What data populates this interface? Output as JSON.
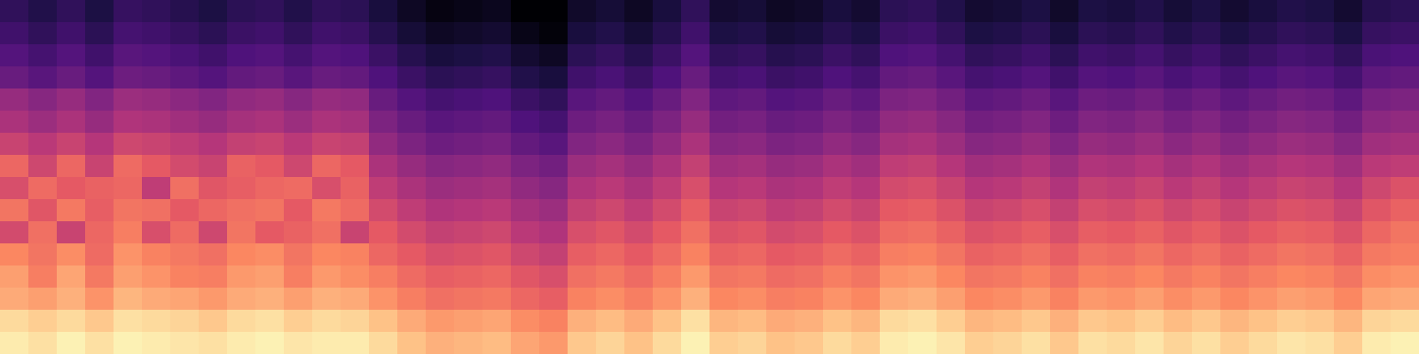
{
  "chart_data": {
    "type": "heatmap",
    "tick_labels": false,
    "zlim": [
      -80,
      0
    ],
    "cells": [
      [
        -66,
        -69,
        -66,
        -70,
        -65,
        -66,
        -68,
        -70,
        -67,
        -66,
        -69,
        -66,
        -67,
        -71,
        -75,
        -78,
        -77,
        -76,
        -80,
        -80,
        -74,
        -72,
        -75,
        -71,
        -66,
        -73,
        -72,
        -75,
        -74,
        -71,
        -73,
        -67,
        -66,
        -69,
        -73,
        -72,
        -70,
        -74,
        -70,
        -71,
        -69,
        -72,
        -70,
        -73,
        -71,
        -69,
        -70,
        -73,
        -68,
        -67
      ],
      [
        -63,
        -66,
        -63,
        -67,
        -62,
        -63,
        -65,
        -67,
        -64,
        -63,
        -66,
        -63,
        -64,
        -68,
        -72,
        -75,
        -74,
        -73,
        -77,
        -79,
        -71,
        -69,
        -72,
        -68,
        -63,
        -70,
        -69,
        -72,
        -71,
        -68,
        -70,
        -64,
        -63,
        -66,
        -70,
        -69,
        -67,
        -71,
        -67,
        -68,
        -66,
        -69,
        -67,
        -70,
        -68,
        -66,
        -67,
        -70,
        -65,
        -64
      ],
      [
        -59,
        -62,
        -59,
        -63,
        -58,
        -59,
        -61,
        -63,
        -60,
        -59,
        -62,
        -59,
        -60,
        -64,
        -68,
        -71,
        -70,
        -69,
        -73,
        -75,
        -67,
        -65,
        -68,
        -64,
        -59,
        -66,
        -65,
        -68,
        -67,
        -64,
        -66,
        -60,
        -59,
        -62,
        -66,
        -65,
        -63,
        -67,
        -63,
        -64,
        -62,
        -65,
        -63,
        -66,
        -64,
        -62,
        -63,
        -66,
        -61,
        -60
      ],
      [
        -55,
        -58,
        -55,
        -59,
        -54,
        -55,
        -57,
        -59,
        -56,
        -55,
        -58,
        -55,
        -56,
        -60,
        -64,
        -67,
        -66,
        -65,
        -69,
        -71,
        -63,
        -61,
        -64,
        -60,
        -55,
        -62,
        -61,
        -64,
        -63,
        -60,
        -62,
        -56,
        -55,
        -58,
        -62,
        -61,
        -59,
        -63,
        -59,
        -60,
        -58,
        -61,
        -59,
        -62,
        -60,
        -58,
        -59,
        -62,
        -57,
        -56
      ],
      [
        -46,
        -49,
        -46,
        -50,
        -45,
        -46,
        -48,
        -50,
        -47,
        -46,
        -49,
        -46,
        -47,
        -55,
        -59,
        -62,
        -61,
        -60,
        -64,
        -66,
        -58,
        -56,
        -59,
        -55,
        -50,
        -57,
        -56,
        -59,
        -58,
        -55,
        -57,
        -51,
        -50,
        -53,
        -57,
        -56,
        -54,
        -58,
        -54,
        -55,
        -53,
        -56,
        -54,
        -57,
        -55,
        -53,
        -54,
        -57,
        -52,
        -51
      ],
      [
        -42,
        -45,
        -42,
        -46,
        -41,
        -42,
        -44,
        -46,
        -43,
        -42,
        -45,
        -42,
        -43,
        -51,
        -55,
        -58,
        -57,
        -56,
        -60,
        -62,
        -54,
        -52,
        -55,
        -51,
        -46,
        -53,
        -52,
        -55,
        -54,
        -51,
        -53,
        -47,
        -46,
        -49,
        -53,
        -52,
        -50,
        -54,
        -50,
        -51,
        -49,
        -52,
        -50,
        -53,
        -51,
        -49,
        -50,
        -53,
        -48,
        -47
      ],
      [
        -36,
        -39,
        -36,
        -40,
        -35,
        -36,
        -38,
        -40,
        -37,
        -36,
        -39,
        -36,
        -37,
        -47,
        -51,
        -54,
        -53,
        -52,
        -56,
        -58,
        -50,
        -48,
        -51,
        -47,
        -42,
        -49,
        -48,
        -51,
        -50,
        -47,
        -49,
        -43,
        -42,
        -45,
        -49,
        -48,
        -46,
        -50,
        -46,
        -47,
        -45,
        -48,
        -46,
        -49,
        -47,
        -45,
        -46,
        -49,
        -44,
        -43
      ],
      [
        -27,
        -35,
        -27,
        -36,
        -26,
        -30,
        -34,
        -36,
        -28,
        -30,
        -35,
        -27,
        -30,
        -42,
        -46,
        -49,
        -48,
        -47,
        -51,
        -53,
        -45,
        -43,
        -46,
        -42,
        -37,
        -44,
        -43,
        -46,
        -45,
        -42,
        -44,
        -38,
        -37,
        -40,
        -44,
        -43,
        -41,
        -45,
        -41,
        -42,
        -40,
        -43,
        -41,
        -44,
        -42,
        -40,
        -41,
        -44,
        -39,
        -38
      ],
      [
        -33,
        -26,
        -30,
        -28,
        -27,
        -38,
        -25,
        -31,
        -29,
        -27,
        -26,
        -33,
        -28,
        -38,
        -42,
        -45,
        -44,
        -43,
        -47,
        -49,
        -41,
        -39,
        -42,
        -38,
        -33,
        -40,
        -39,
        -42,
        -41,
        -38,
        -40,
        -34,
        -33,
        -36,
        -40,
        -39,
        -37,
        -41,
        -37,
        -38,
        -36,
        -39,
        -37,
        -40,
        -38,
        -36,
        -37,
        -40,
        -35,
        -32
      ],
      [
        -24,
        -31,
        -23,
        -29,
        -24,
        -25,
        -30,
        -27,
        -25,
        -24,
        -30,
        -23,
        -26,
        -34,
        -38,
        -41,
        -40,
        -39,
        -43,
        -45,
        -37,
        -35,
        -38,
        -34,
        -29,
        -36,
        -35,
        -38,
        -37,
        -34,
        -36,
        -30,
        -29,
        -32,
        -36,
        -35,
        -33,
        -37,
        -33,
        -34,
        -32,
        -35,
        -33,
        -36,
        -34,
        -32,
        -33,
        -36,
        -31,
        -28
      ],
      [
        -34,
        -25,
        -36,
        -27,
        -22,
        -33,
        -26,
        -35,
        -24,
        -30,
        -28,
        -25,
        -36,
        -30,
        -34,
        -37,
        -36,
        -35,
        -39,
        -41,
        -33,
        -31,
        -34,
        -30,
        -25,
        -32,
        -31,
        -34,
        -33,
        -30,
        -32,
        -26,
        -25,
        -28,
        -32,
        -31,
        -29,
        -33,
        -29,
        -30,
        -28,
        -31,
        -29,
        -32,
        -30,
        -28,
        -29,
        -32,
        -27,
        -24
      ],
      [
        -20,
        -24,
        -19,
        -26,
        -18,
        -21,
        -23,
        -25,
        -20,
        -19,
        -24,
        -20,
        -21,
        -27,
        -30,
        -33,
        -32,
        -31,
        -35,
        -37,
        -29,
        -27,
        -30,
        -26,
        -21,
        -28,
        -27,
        -30,
        -29,
        -26,
        -28,
        -22,
        -21,
        -24,
        -28,
        -27,
        -25,
        -29,
        -25,
        -26,
        -24,
        -27,
        -25,
        -28,
        -26,
        -24,
        -25,
        -28,
        -23,
        -22
      ],
      [
        -16,
        -22,
        -15,
        -23,
        -16,
        -18,
        -21,
        -22,
        -17,
        -16,
        -22,
        -17,
        -19,
        -22,
        -26,
        -29,
        -28,
        -27,
        -31,
        -33,
        -25,
        -23,
        -26,
        -22,
        -17,
        -24,
        -23,
        -26,
        -25,
        -22,
        -24,
        -18,
        -17,
        -20,
        -24,
        -23,
        -21,
        -25,
        -21,
        -22,
        -20,
        -23,
        -21,
        -24,
        -22,
        -20,
        -21,
        -24,
        -19,
        -18
      ],
      [
        -14,
        -16,
        -13,
        -18,
        -12,
        -14,
        -15,
        -17,
        -14,
        -13,
        -16,
        -13,
        -14,
        -18,
        -22,
        -25,
        -24,
        -23,
        -27,
        -29,
        -21,
        -19,
        -22,
        -18,
        -13,
        -20,
        -19,
        -22,
        -21,
        -18,
        -20,
        -14,
        -13,
        -16,
        -20,
        -19,
        -17,
        -21,
        -17,
        -18,
        -16,
        -19,
        -17,
        -20,
        -18,
        -16,
        -17,
        -20,
        -15,
        -14
      ],
      [
        -6,
        -8,
        -6,
        -9,
        -5,
        -6,
        -7,
        -9,
        -6,
        -5,
        -8,
        -6,
        -7,
        -10,
        -14,
        -17,
        -16,
        -15,
        -19,
        -21,
        -13,
        -11,
        -14,
        -10,
        -5,
        -12,
        -11,
        -14,
        -13,
        -10,
        -12,
        -6,
        -5,
        -8,
        -12,
        -11,
        -9,
        -13,
        -9,
        -10,
        -8,
        -11,
        -9,
        -12,
        -10,
        -8,
        -9,
        -12,
        -7,
        -6
      ],
      [
        -3,
        -5,
        -2,
        -5,
        -2,
        -3,
        -4,
        -5,
        -3,
        -2,
        -4,
        -3,
        -3,
        -6,
        -10,
        -13,
        -12,
        -11,
        -15,
        -17,
        -9,
        -7,
        -10,
        -6,
        -2,
        -8,
        -7,
        -10,
        -9,
        -6,
        -8,
        -3,
        -2,
        -4,
        -8,
        -7,
        -5,
        -9,
        -5,
        -6,
        -4,
        -7,
        -5,
        -8,
        -6,
        -4,
        -5,
        -8,
        -3,
        -2
      ]
    ]
  }
}
